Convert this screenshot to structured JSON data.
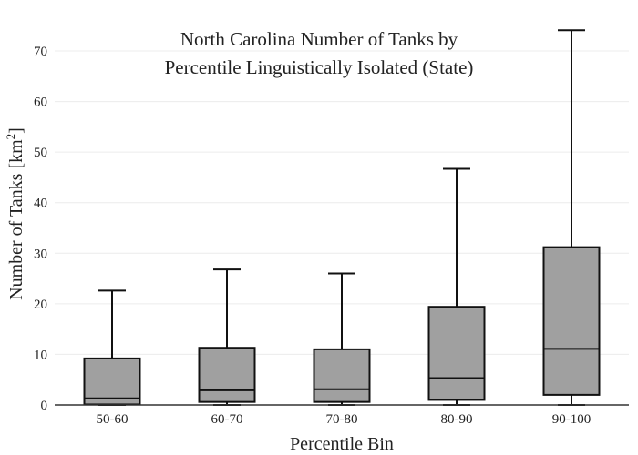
{
  "chart_data": {
    "type": "box",
    "title_line1": "North Carolina Number of Tanks by",
    "title_line2": "Percentile Linguistically Isolated (State)",
    "xlabel": "Percentile Bin",
    "ylabel_main": "Number of Tanks  [km",
    "ylabel_sup": "2",
    "ylabel_end": "]",
    "ylim": [
      0,
      75
    ],
    "yticks": [
      0,
      10,
      20,
      30,
      40,
      50,
      60,
      70
    ],
    "grid": true,
    "categories": [
      "50-60",
      "60-70",
      "70-80",
      "80-90",
      "90-100"
    ],
    "boxes": [
      {
        "category": "50-60",
        "whisker_low": 0,
        "q1": 0.1,
        "median": 1.3,
        "q3": 9.2,
        "whisker_high": 22.6
      },
      {
        "category": "60-70",
        "whisker_low": 0,
        "q1": 0.6,
        "median": 2.9,
        "q3": 11.3,
        "whisker_high": 26.8
      },
      {
        "category": "70-80",
        "whisker_low": 0,
        "q1": 0.6,
        "median": 3.1,
        "q3": 11.0,
        "whisker_high": 26.0
      },
      {
        "category": "80-90",
        "whisker_low": 0,
        "q1": 1.0,
        "median": 5.3,
        "q3": 19.4,
        "whisker_high": 46.7
      },
      {
        "category": "90-100",
        "whisker_low": 0,
        "q1": 2.0,
        "median": 11.1,
        "q3": 31.2,
        "whisker_high": 74.1
      }
    ]
  }
}
